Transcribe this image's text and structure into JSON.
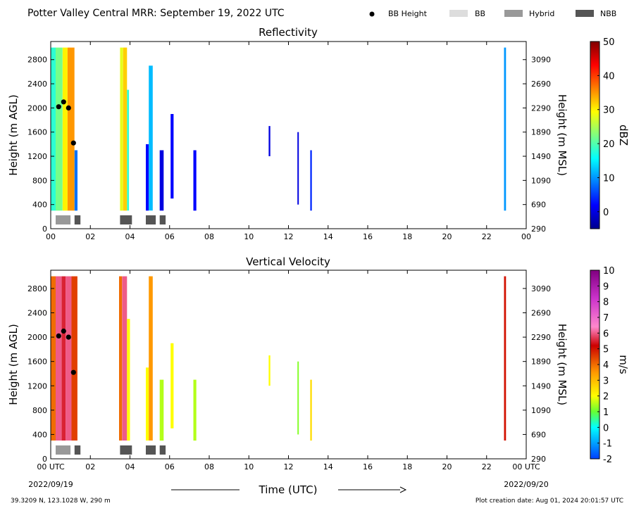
{
  "page_title": "Potter Valley Central MRR:  September 19, 2022 UTC",
  "legend": [
    {
      "label": "BB Height",
      "kind": "dot",
      "color": "#000000"
    },
    {
      "label": "BB",
      "kind": "bar",
      "color": "#dddddd"
    },
    {
      "label": "Hybrid",
      "kind": "bar",
      "color": "#999999"
    },
    {
      "label": "NBB",
      "kind": "bar",
      "color": "#555555"
    }
  ],
  "footer": {
    "location": "39.3209 N, 123.1028 W, 290 m",
    "creation": "Plot creation date: Aug 01, 2024 20:01:57 UTC",
    "time_label": "Time (UTC)",
    "start_time": "00 UTC",
    "start_date": "2022/09/19",
    "end_time": "00 UTC",
    "end_date": "2022/09/20"
  },
  "chart_data": [
    {
      "type": "heatmap",
      "title": "Reflectivity",
      "xlabel": "",
      "ylabel": "Height (m AGL)",
      "ylabel_right": "Height (m MSL)",
      "xlim": [
        0,
        24
      ],
      "ylim": [
        0,
        3100
      ],
      "x_ticks": [
        "00",
        "02",
        "04",
        "06",
        "08",
        "10",
        "12",
        "14",
        "16",
        "18",
        "20",
        "22",
        "00"
      ],
      "y_ticks": [
        0,
        400,
        800,
        1200,
        1600,
        2000,
        2400,
        2800
      ],
      "y_ticks_right": [
        "290",
        "690",
        "1090",
        "1490",
        "1890",
        "2290",
        "2690",
        "3090"
      ],
      "colorbar": {
        "label": "dBZ",
        "range": [
          -5,
          50
        ],
        "ticks": [
          "0",
          "10",
          "20",
          "30",
          "40",
          "50"
        ],
        "tick_values": [
          0,
          10,
          20,
          30,
          40,
          50
        ],
        "colormap": "jet"
      },
      "regions": [
        {
          "x0": 0.0,
          "x1": 0.25,
          "y0": 300,
          "y1": 3000,
          "value": 18
        },
        {
          "x0": 0.25,
          "x1": 0.6,
          "y0": 300,
          "y1": 3000,
          "value": 22
        },
        {
          "x0": 0.6,
          "x1": 0.85,
          "y0": 300,
          "y1": 3000,
          "value": 30
        },
        {
          "x0": 0.85,
          "x1": 1.2,
          "y0": 300,
          "y1": 3000,
          "value": 35
        },
        {
          "x0": 1.2,
          "x1": 1.35,
          "y0": 300,
          "y1": 1300,
          "value": 8
        },
        {
          "x0": 3.5,
          "x1": 3.65,
          "y0": 300,
          "y1": 3000,
          "value": 28
        },
        {
          "x0": 3.65,
          "x1": 3.85,
          "y0": 300,
          "y1": 3000,
          "value": 32
        },
        {
          "x0": 3.85,
          "x1": 3.95,
          "y0": 300,
          "y1": 2300,
          "value": 18
        },
        {
          "x0": 4.8,
          "x1": 4.95,
          "y0": 300,
          "y1": 1400,
          "value": 2
        },
        {
          "x0": 4.95,
          "x1": 5.15,
          "y0": 300,
          "y1": 2700,
          "value": 12
        },
        {
          "x0": 5.5,
          "x1": 5.7,
          "y0": 300,
          "y1": 1300,
          "value": 0
        },
        {
          "x0": 6.05,
          "x1": 6.2,
          "y0": 500,
          "y1": 1900,
          "value": 2
        },
        {
          "x0": 7.2,
          "x1": 7.35,
          "y0": 300,
          "y1": 1300,
          "value": 2
        },
        {
          "x0": 11.0,
          "x1": 11.08,
          "y0": 1200,
          "y1": 1700,
          "value": 0
        },
        {
          "x0": 12.45,
          "x1": 12.52,
          "y0": 400,
          "y1": 1600,
          "value": 0
        },
        {
          "x0": 13.1,
          "x1": 13.18,
          "y0": 300,
          "y1": 1300,
          "value": 4
        },
        {
          "x0": 22.88,
          "x1": 22.98,
          "y0": 300,
          "y1": 3000,
          "value": 10
        }
      ],
      "bb_height": [
        {
          "x": 0.4,
          "y": 2020
        },
        {
          "x": 0.65,
          "y": 2100
        },
        {
          "x": 0.9,
          "y": 2000
        },
        {
          "x": 1.15,
          "y": 1420
        }
      ],
      "bb_type": [
        {
          "x0": 0.25,
          "x1": 1.0,
          "type": "Hybrid"
        },
        {
          "x0": 1.2,
          "x1": 1.5,
          "type": "NBB"
        },
        {
          "x0": 3.5,
          "x1": 4.1,
          "type": "NBB"
        },
        {
          "x0": 4.8,
          "x1": 5.3,
          "type": "NBB"
        },
        {
          "x0": 5.5,
          "x1": 5.8,
          "type": "NBB"
        }
      ]
    },
    {
      "type": "heatmap",
      "title": "Vertical Velocity",
      "xlabel": "Time (UTC)",
      "ylabel": "Height (m AGL)",
      "ylabel_right": "Height (m MSL)",
      "xlim": [
        0,
        24
      ],
      "ylim": [
        0,
        3100
      ],
      "x_ticks": [
        "00 UTC",
        "02",
        "04",
        "06",
        "08",
        "10",
        "12",
        "14",
        "16",
        "18",
        "20",
        "22",
        "00 UTC"
      ],
      "y_ticks": [
        0,
        400,
        800,
        1200,
        1600,
        2000,
        2400,
        2800
      ],
      "y_ticks_right": [
        "290",
        "690",
        "1090",
        "1490",
        "1890",
        "2290",
        "2690",
        "3090"
      ],
      "colorbar": {
        "label": "m/s",
        "range": [
          -2,
          10
        ],
        "ticks": [
          "-2",
          "-1",
          "0",
          "1",
          "2",
          "3",
          "4",
          "5",
          "6",
          "7",
          "8",
          "9",
          "10"
        ],
        "tick_values": [
          -2,
          -1,
          0,
          1,
          2,
          3,
          4,
          5,
          6,
          7,
          8,
          9,
          10
        ],
        "colormap": "velocity"
      },
      "regions": [
        {
          "x0": 0.0,
          "x1": 0.25,
          "y0": 300,
          "y1": 3000,
          "value": 4
        },
        {
          "x0": 0.25,
          "x1": 0.55,
          "y0": 300,
          "y1": 3000,
          "value": 6
        },
        {
          "x0": 0.55,
          "x1": 0.75,
          "y0": 300,
          "y1": 3000,
          "value": 5.5
        },
        {
          "x0": 0.75,
          "x1": 1.05,
          "y0": 300,
          "y1": 3000,
          "value": 6
        },
        {
          "x0": 1.05,
          "x1": 1.35,
          "y0": 300,
          "y1": 3000,
          "value": 4.5
        },
        {
          "x0": 3.45,
          "x1": 3.6,
          "y0": 300,
          "y1": 3000,
          "value": 4
        },
        {
          "x0": 3.6,
          "x1": 3.85,
          "y0": 300,
          "y1": 3000,
          "value": 6
        },
        {
          "x0": 3.85,
          "x1": 4.0,
          "y0": 300,
          "y1": 2300,
          "value": 2
        },
        {
          "x0": 4.8,
          "x1": 4.95,
          "y0": 300,
          "y1": 1500,
          "value": 2
        },
        {
          "x0": 4.95,
          "x1": 5.15,
          "y0": 300,
          "y1": 3000,
          "value": 3.5
        },
        {
          "x0": 5.5,
          "x1": 5.7,
          "y0": 300,
          "y1": 1300,
          "value": 1.5
        },
        {
          "x0": 6.05,
          "x1": 6.2,
          "y0": 500,
          "y1": 1900,
          "value": 2
        },
        {
          "x0": 7.2,
          "x1": 7.35,
          "y0": 300,
          "y1": 1300,
          "value": 1.5
        },
        {
          "x0": 11.0,
          "x1": 11.08,
          "y0": 1200,
          "y1": 1700,
          "value": 2
        },
        {
          "x0": 12.45,
          "x1": 12.52,
          "y0": 400,
          "y1": 1600,
          "value": 1.2
        },
        {
          "x0": 13.1,
          "x1": 13.18,
          "y0": 300,
          "y1": 1300,
          "value": 2.5
        },
        {
          "x0": 22.88,
          "x1": 22.98,
          "y0": 300,
          "y1": 3000,
          "value": 5
        }
      ],
      "bb_height": [
        {
          "x": 0.4,
          "y": 2020
        },
        {
          "x": 0.65,
          "y": 2100
        },
        {
          "x": 0.9,
          "y": 2000
        },
        {
          "x": 1.15,
          "y": 1420
        }
      ],
      "bb_type": [
        {
          "x0": 0.25,
          "x1": 1.0,
          "type": "Hybrid"
        },
        {
          "x0": 1.2,
          "x1": 1.5,
          "type": "NBB"
        },
        {
          "x0": 3.5,
          "x1": 4.1,
          "type": "NBB"
        },
        {
          "x0": 4.8,
          "x1": 5.3,
          "type": "NBB"
        },
        {
          "x0": 5.5,
          "x1": 5.8,
          "type": "NBB"
        }
      ]
    }
  ]
}
